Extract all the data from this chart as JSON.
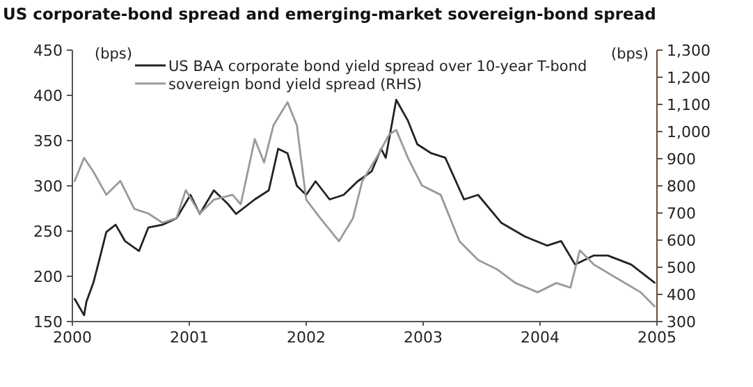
{
  "chart_data": {
    "type": "line",
    "title": "US corporate-bond spread and emerging-market sovereign-bond spread",
    "ylabel": "(bps)",
    "y2label": "(bps)",
    "xlim": [
      2000,
      2005
    ],
    "xticks": [
      2000,
      2001,
      2002,
      2003,
      2004,
      2005
    ],
    "ylim": [
      150,
      450
    ],
    "yticks": [
      150,
      200,
      250,
      300,
      350,
      400,
      450
    ],
    "y2lim": [
      300,
      1300
    ],
    "y2ticks": [
      {
        "value": 300,
        "label": "300"
      },
      {
        "value": 400,
        "label": "400"
      },
      {
        "value": 500,
        "label": "500"
      },
      {
        "value": 600,
        "label": "600"
      },
      {
        "value": 700,
        "label": "700"
      },
      {
        "value": 800,
        "label": "800"
      },
      {
        "value": 900,
        "label": "900"
      },
      {
        "value": 1000,
        "label": "1,000"
      },
      {
        "value": 1100,
        "label": "1,100"
      },
      {
        "value": 1200,
        "label": "1,200"
      },
      {
        "value": 1300,
        "label": "1,300"
      }
    ],
    "grid": false,
    "legend": "top",
    "marker": "none",
    "line_style": "solid",
    "series": [
      {
        "name": "US BAA corporate bond yield spread over 10-year T-bond",
        "color": "#222222",
        "x": [
          2000.02,
          2000.1,
          2000.12,
          2000.18,
          2000.23,
          2000.29,
          2000.37,
          2000.45,
          2000.57,
          2000.65,
          2000.77,
          2000.89,
          2001.01,
          2001.09,
          2001.21,
          2001.33,
          2001.4,
          2001.56,
          2001.68,
          2001.76,
          2001.84,
          2001.92,
          2002.0,
          2002.08,
          2002.2,
          2002.32,
          2002.44,
          2002.56,
          2002.64,
          2002.68,
          2002.77,
          2002.87,
          2002.95,
          2003.07,
          2003.19,
          2003.35,
          2003.47,
          2003.67,
          2003.87,
          2004.06,
          2004.18,
          2004.3,
          2004.46,
          2004.58,
          2004.78,
          2004.98
        ],
        "values": [
          175,
          157,
          172,
          193,
          218,
          249,
          257,
          239,
          228,
          254,
          257,
          264,
          290,
          269,
          295,
          280,
          269,
          285,
          295,
          341,
          336,
          300,
          290,
          305,
          285,
          290,
          305,
          316,
          341,
          331,
          395,
          372,
          346,
          336,
          331,
          285,
          290,
          259,
          244,
          234,
          239,
          213,
          223,
          223,
          213,
          193
        ]
      },
      {
        "name": "sovereign bond yield spread (RHS)",
        "color": "#999999",
        "axis": "y2",
        "x": [
          2000.02,
          2000.1,
          2000.18,
          2000.29,
          2000.41,
          2000.53,
          2000.65,
          2000.77,
          2000.89,
          2000.97,
          2001.09,
          2001.21,
          2001.37,
          2001.44,
          2001.56,
          2001.64,
          2001.72,
          2001.84,
          2001.92,
          2002.0,
          2002.12,
          2002.28,
          2002.4,
          2002.48,
          2002.6,
          2002.71,
          2002.77,
          2002.87,
          2002.99,
          2003.15,
          2003.31,
          2003.47,
          2003.63,
          2003.79,
          2003.98,
          2004.14,
          2004.26,
          2004.34,
          2004.46,
          2004.66,
          2004.86,
          2004.98
        ],
        "values": [
          818,
          903,
          852,
          767,
          818,
          715,
          698,
          664,
          681,
          784,
          698,
          749,
          767,
          732,
          972,
          886,
          1023,
          1108,
          1023,
          749,
          681,
          596,
          681,
          818,
          903,
          989,
          1006,
          903,
          801,
          767,
          596,
          527,
          493,
          442,
          408,
          442,
          425,
          562,
          510,
          459,
          408,
          356
        ]
      }
    ]
  }
}
